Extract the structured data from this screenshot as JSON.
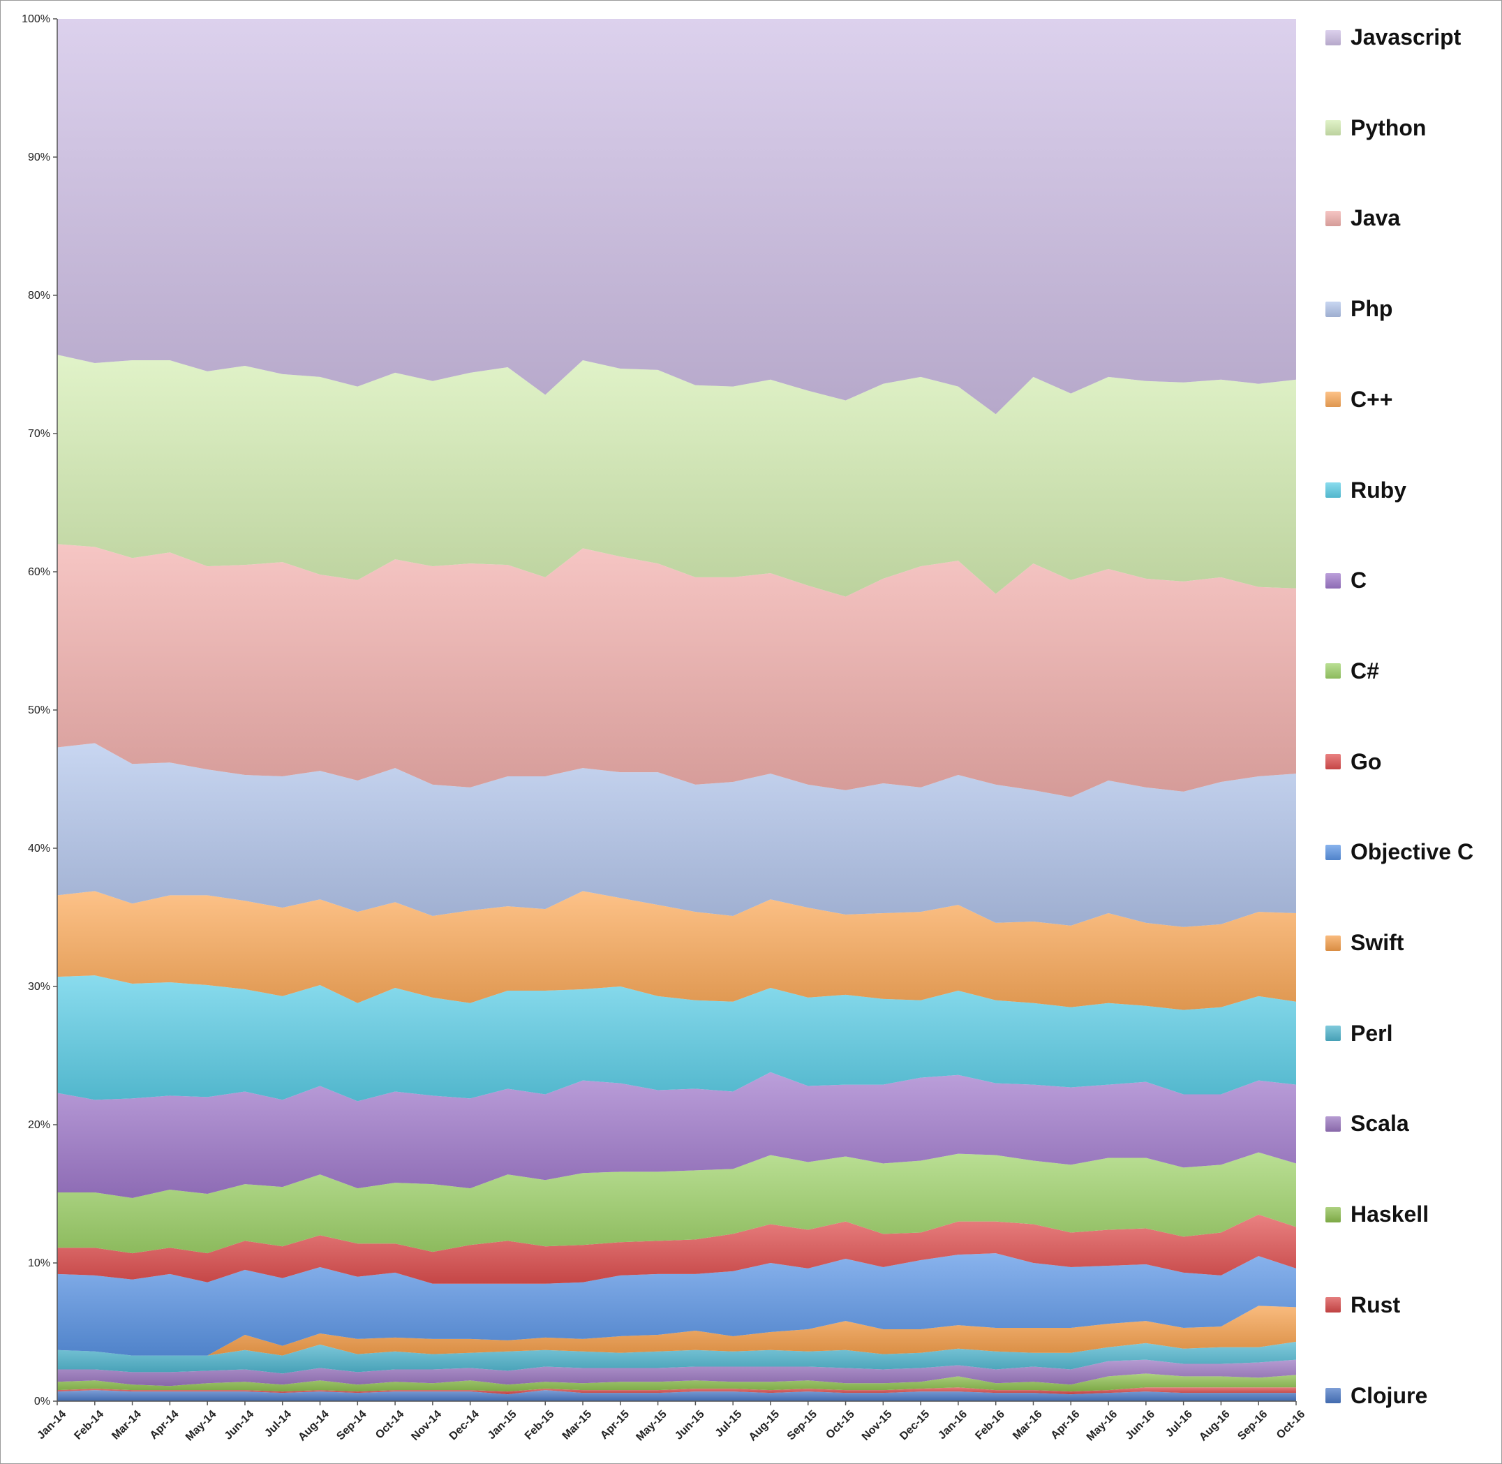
{
  "chart_data": {
    "type": "area",
    "stacked": "percent",
    "ylim": [
      0,
      100
    ],
    "y_ticks": [
      "0%",
      "10%",
      "20%",
      "30%",
      "40%",
      "50%",
      "60%",
      "70%",
      "80%",
      "90%",
      "100%"
    ],
    "categories": [
      "Jan-14",
      "Feb-14",
      "Mar-14",
      "Apr-14",
      "May-14",
      "Jun-14",
      "Jul-14",
      "Aug-14",
      "Sep-14",
      "Oct-14",
      "Nov-14",
      "Dec-14",
      "Jan-15",
      "Feb-15",
      "Mar-15",
      "Apr-15",
      "May-15",
      "Jun-15",
      "Jul-15",
      "Aug-15",
      "Sep-15",
      "Oct-15",
      "Nov-15",
      "Dec-15",
      "Jan-16",
      "Feb-16",
      "Mar-16",
      "Apr-16",
      "May-16",
      "Jun-16",
      "Jul-16",
      "Aug-16",
      "Sep-16",
      "Oct-16"
    ],
    "legend_position": "right",
    "grid": false,
    "series": [
      {
        "name": "Clojure",
        "color": "#4a78c6",
        "cum_top": [
          0.7,
          0.8,
          0.7,
          0.7,
          0.7,
          0.7,
          0.6,
          0.7,
          0.6,
          0.7,
          0.7,
          0.7,
          0.5,
          0.8,
          0.6,
          0.6,
          0.6,
          0.7,
          0.7,
          0.6,
          0.7,
          0.6,
          0.6,
          0.7,
          0.7,
          0.6,
          0.6,
          0.5,
          0.6,
          0.7,
          0.6,
          0.6,
          0.6,
          0.6
        ]
      },
      {
        "name": "Rust",
        "color": "#d94a4a",
        "cum_top": [
          0.8,
          0.9,
          0.8,
          0.8,
          0.8,
          0.8,
          0.7,
          0.8,
          0.7,
          0.8,
          0.8,
          0.8,
          0.7,
          0.9,
          0.8,
          0.8,
          0.8,
          0.9,
          0.9,
          0.8,
          0.9,
          0.8,
          0.8,
          0.9,
          1.0,
          0.8,
          0.8,
          0.7,
          0.8,
          1.0,
          1.0,
          1.0,
          1.0,
          1.0
        ]
      },
      {
        "name": "Haskell",
        "color": "#8dbf4e",
        "cum_top": [
          1.4,
          1.5,
          1.2,
          1.1,
          1.3,
          1.4,
          1.2,
          1.5,
          1.2,
          1.4,
          1.3,
          1.5,
          1.2,
          1.4,
          1.3,
          1.4,
          1.4,
          1.5,
          1.4,
          1.4,
          1.5,
          1.3,
          1.3,
          1.4,
          1.8,
          1.3,
          1.4,
          1.2,
          1.8,
          2.0,
          1.8,
          1.8,
          1.7,
          1.9
        ]
      },
      {
        "name": "Scala",
        "color": "#9a76c0",
        "cum_top": [
          2.3,
          2.3,
          2.1,
          2.1,
          2.2,
          2.3,
          2.0,
          2.4,
          2.1,
          2.3,
          2.3,
          2.4,
          2.2,
          2.5,
          2.4,
          2.4,
          2.4,
          2.5,
          2.5,
          2.5,
          2.5,
          2.4,
          2.3,
          2.4,
          2.6,
          2.3,
          2.5,
          2.3,
          2.9,
          3.0,
          2.7,
          2.7,
          2.8,
          3.0
        ]
      },
      {
        "name": "Perl",
        "color": "#4fb6cf",
        "cum_top": [
          3.7,
          3.6,
          3.3,
          3.3,
          3.3,
          3.7,
          3.3,
          4.1,
          3.4,
          3.6,
          3.4,
          3.5,
          3.6,
          3.7,
          3.6,
          3.5,
          3.6,
          3.7,
          3.6,
          3.7,
          3.6,
          3.7,
          3.4,
          3.5,
          3.8,
          3.6,
          3.5,
          3.5,
          3.9,
          4.2,
          3.8,
          3.9,
          3.9,
          4.3
        ]
      },
      {
        "name": "Swift",
        "color": "#f7a04c",
        "cum_top": [
          3.7,
          3.6,
          3.3,
          3.3,
          3.3,
          4.8,
          4.0,
          4.9,
          4.5,
          4.6,
          4.5,
          4.5,
          4.4,
          4.6,
          4.5,
          4.7,
          4.8,
          5.1,
          4.7,
          5.0,
          5.2,
          5.8,
          5.2,
          5.2,
          5.5,
          5.3,
          5.3,
          5.3,
          5.6,
          5.8,
          5.3,
          5.4,
          6.9,
          6.8
        ]
      },
      {
        "name": "Objective C",
        "color": "#5b95e6",
        "cum_top": [
          9.2,
          9.1,
          8.8,
          9.2,
          8.6,
          9.5,
          8.9,
          9.7,
          9.0,
          9.3,
          8.5,
          8.5,
          8.5,
          8.5,
          8.6,
          9.1,
          9.2,
          9.2,
          9.4,
          10.0,
          9.6,
          10.3,
          9.7,
          10.2,
          10.6,
          10.7,
          10.0,
          9.7,
          9.8,
          9.9,
          9.3,
          9.1,
          10.5,
          9.6
        ]
      },
      {
        "name": "Go",
        "color": "#e05050",
        "cum_top": [
          11.1,
          11.1,
          10.7,
          11.1,
          10.7,
          11.6,
          11.2,
          12.0,
          11.4,
          11.4,
          10.8,
          11.3,
          11.6,
          11.2,
          11.3,
          11.5,
          11.6,
          11.7,
          12.1,
          12.8,
          12.4,
          13.0,
          12.1,
          12.2,
          13.0,
          13.0,
          12.8,
          12.2,
          12.4,
          12.5,
          11.9,
          12.2,
          13.5,
          12.6
        ]
      },
      {
        "name": "C#",
        "color": "#9fd36a",
        "cum_top": [
          15.1,
          15.1,
          14.7,
          15.3,
          15.0,
          15.7,
          15.5,
          16.4,
          15.4,
          15.8,
          15.7,
          15.4,
          16.4,
          16.0,
          16.5,
          16.6,
          16.6,
          16.7,
          16.8,
          17.8,
          17.3,
          17.7,
          17.2,
          17.4,
          17.9,
          17.8,
          17.4,
          17.1,
          17.6,
          17.6,
          16.9,
          17.1,
          18.0,
          17.2
        ]
      },
      {
        "name": "C",
        "color": "#a07acc",
        "cum_top": [
          22.3,
          21.8,
          21.9,
          22.1,
          22.0,
          22.4,
          21.8,
          22.8,
          21.7,
          22.4,
          22.1,
          21.9,
          22.6,
          22.2,
          23.2,
          23.0,
          22.5,
          22.6,
          22.4,
          23.8,
          22.8,
          22.9,
          22.9,
          23.4,
          23.6,
          23.0,
          22.9,
          22.7,
          22.9,
          23.1,
          22.2,
          22.2,
          23.2,
          22.9
        ]
      },
      {
        "name": "Ruby",
        "color": "#5ccfe8",
        "cum_top": [
          30.7,
          30.8,
          30.2,
          30.3,
          30.1,
          29.8,
          29.3,
          30.1,
          28.8,
          29.9,
          29.2,
          28.8,
          29.7,
          29.7,
          29.8,
          30.0,
          29.3,
          29.0,
          28.9,
          29.9,
          29.2,
          29.4,
          29.1,
          29.0,
          29.7,
          29.0,
          28.8,
          28.5,
          28.8,
          28.6,
          28.3,
          28.5,
          29.3,
          28.9
        ]
      },
      {
        "name": "C++",
        "color": "#fcaa5a",
        "cum_top": [
          36.6,
          36.9,
          36.0,
          36.6,
          36.6,
          36.2,
          35.7,
          36.3,
          35.4,
          36.1,
          35.1,
          35.5,
          35.8,
          35.6,
          36.9,
          36.4,
          35.9,
          35.4,
          35.1,
          36.3,
          35.7,
          35.2,
          35.3,
          35.4,
          35.9,
          34.6,
          34.7,
          34.4,
          35.3,
          34.6,
          34.3,
          34.5,
          35.4,
          35.3
        ]
      },
      {
        "name": "Php",
        "color": "#b3c6ec",
        "cum_top": [
          47.3,
          47.6,
          46.1,
          46.2,
          45.7,
          45.3,
          45.2,
          45.6,
          44.9,
          45.8,
          44.6,
          44.4,
          45.2,
          45.2,
          45.8,
          45.5,
          45.5,
          44.6,
          44.8,
          45.4,
          44.6,
          44.2,
          44.7,
          44.4,
          45.3,
          44.6,
          44.2,
          43.7,
          44.9,
          44.4,
          44.1,
          44.8,
          45.2,
          45.4
        ]
      },
      {
        "name": "Java",
        "color": "#f2b0ad",
        "cum_top": [
          62.0,
          61.8,
          61.0,
          61.4,
          60.4,
          60.5,
          60.7,
          59.8,
          59.4,
          60.9,
          60.4,
          60.6,
          60.5,
          59.6,
          61.7,
          61.1,
          60.6,
          59.6,
          59.6,
          59.9,
          59.0,
          58.2,
          59.5,
          60.4,
          60.8,
          58.4,
          60.6,
          59.4,
          60.2,
          59.5,
          59.3,
          59.6,
          58.9,
          58.8
        ]
      },
      {
        "name": "Python",
        "color": "#d6efb4",
        "cum_top": [
          75.7,
          75.1,
          75.3,
          75.3,
          74.5,
          74.9,
          74.3,
          74.1,
          73.4,
          74.4,
          73.8,
          74.4,
          74.8,
          72.8,
          75.3,
          74.7,
          74.6,
          73.5,
          73.4,
          73.9,
          73.1,
          72.4,
          73.6,
          74.1,
          73.4,
          71.4,
          74.1,
          72.9,
          74.1,
          73.8,
          73.7,
          73.9,
          73.6,
          73.9
        ]
      },
      {
        "name": "Javascript",
        "color": "#cfbfe6",
        "cum_top": [
          100,
          100,
          100,
          100,
          100,
          100,
          100,
          100,
          100,
          100,
          100,
          100,
          100,
          100,
          100,
          100,
          100,
          100,
          100,
          100,
          100,
          100,
          100,
          100,
          100,
          100,
          100,
          100,
          100,
          100,
          100,
          100,
          100,
          100
        ]
      }
    ]
  }
}
